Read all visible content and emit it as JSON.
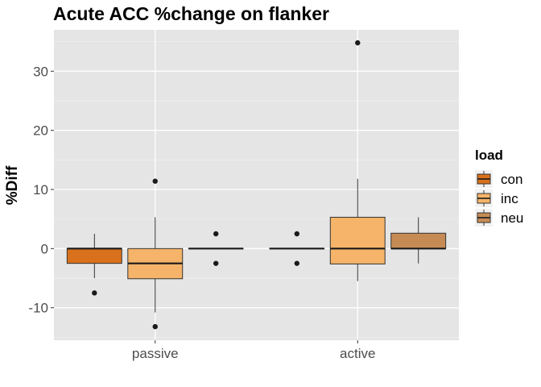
{
  "chart_data": {
    "type": "boxplot",
    "title": "Acute ACC %change on flanker",
    "xlabel": "",
    "ylabel": "%Diff",
    "categories": [
      "passive",
      "active"
    ],
    "ylim": [
      -15.5,
      37
    ],
    "yticks": [
      -10,
      0,
      10,
      20,
      30
    ],
    "ytick_labels": [
      "-10",
      "0",
      "10",
      "20",
      "30"
    ],
    "grid": true,
    "background": "#e5e5e5",
    "legend": {
      "title": "load",
      "position": "right",
      "entries": [
        {
          "name": "con",
          "color": "#d9711c"
        },
        {
          "name": "inc",
          "color": "#f5b469"
        },
        {
          "name": "neu",
          "color": "#c68b55"
        }
      ]
    },
    "series": [
      {
        "name": "con",
        "color": "#d9711c",
        "boxes": [
          {
            "category": "passive",
            "whisker_low": -5,
            "q1": -2.5,
            "median": 0,
            "q3": 0,
            "whisker_high": 2.5,
            "outliers": [
              -7.5
            ]
          },
          {
            "category": "active",
            "whisker_low": 0,
            "q1": 0,
            "median": 0,
            "q3": 0,
            "whisker_high": 0,
            "outliers": [
              2.5,
              -2.5
            ]
          }
        ]
      },
      {
        "name": "inc",
        "color": "#f5b469",
        "boxes": [
          {
            "category": "passive",
            "whisker_low": -10.8,
            "q1": -5.1,
            "median": -2.5,
            "q3": 0,
            "whisker_high": 5.3,
            "outliers": [
              11.4,
              -13.2
            ]
          },
          {
            "category": "active",
            "whisker_low": -5.5,
            "q1": -2.6,
            "median": 0,
            "q3": 5.3,
            "whisker_high": 11.8,
            "outliers": [
              34.8
            ]
          }
        ]
      },
      {
        "name": "neu",
        "color": "#c68b55",
        "boxes": [
          {
            "category": "passive",
            "whisker_low": 0,
            "q1": 0,
            "median": 0,
            "q3": 0,
            "whisker_high": 0,
            "outliers": [
              2.5,
              -2.5
            ]
          },
          {
            "category": "active",
            "whisker_low": -2.5,
            "q1": 0,
            "median": 0,
            "q3": 2.6,
            "whisker_high": 5.3,
            "outliers": []
          }
        ]
      }
    ]
  }
}
